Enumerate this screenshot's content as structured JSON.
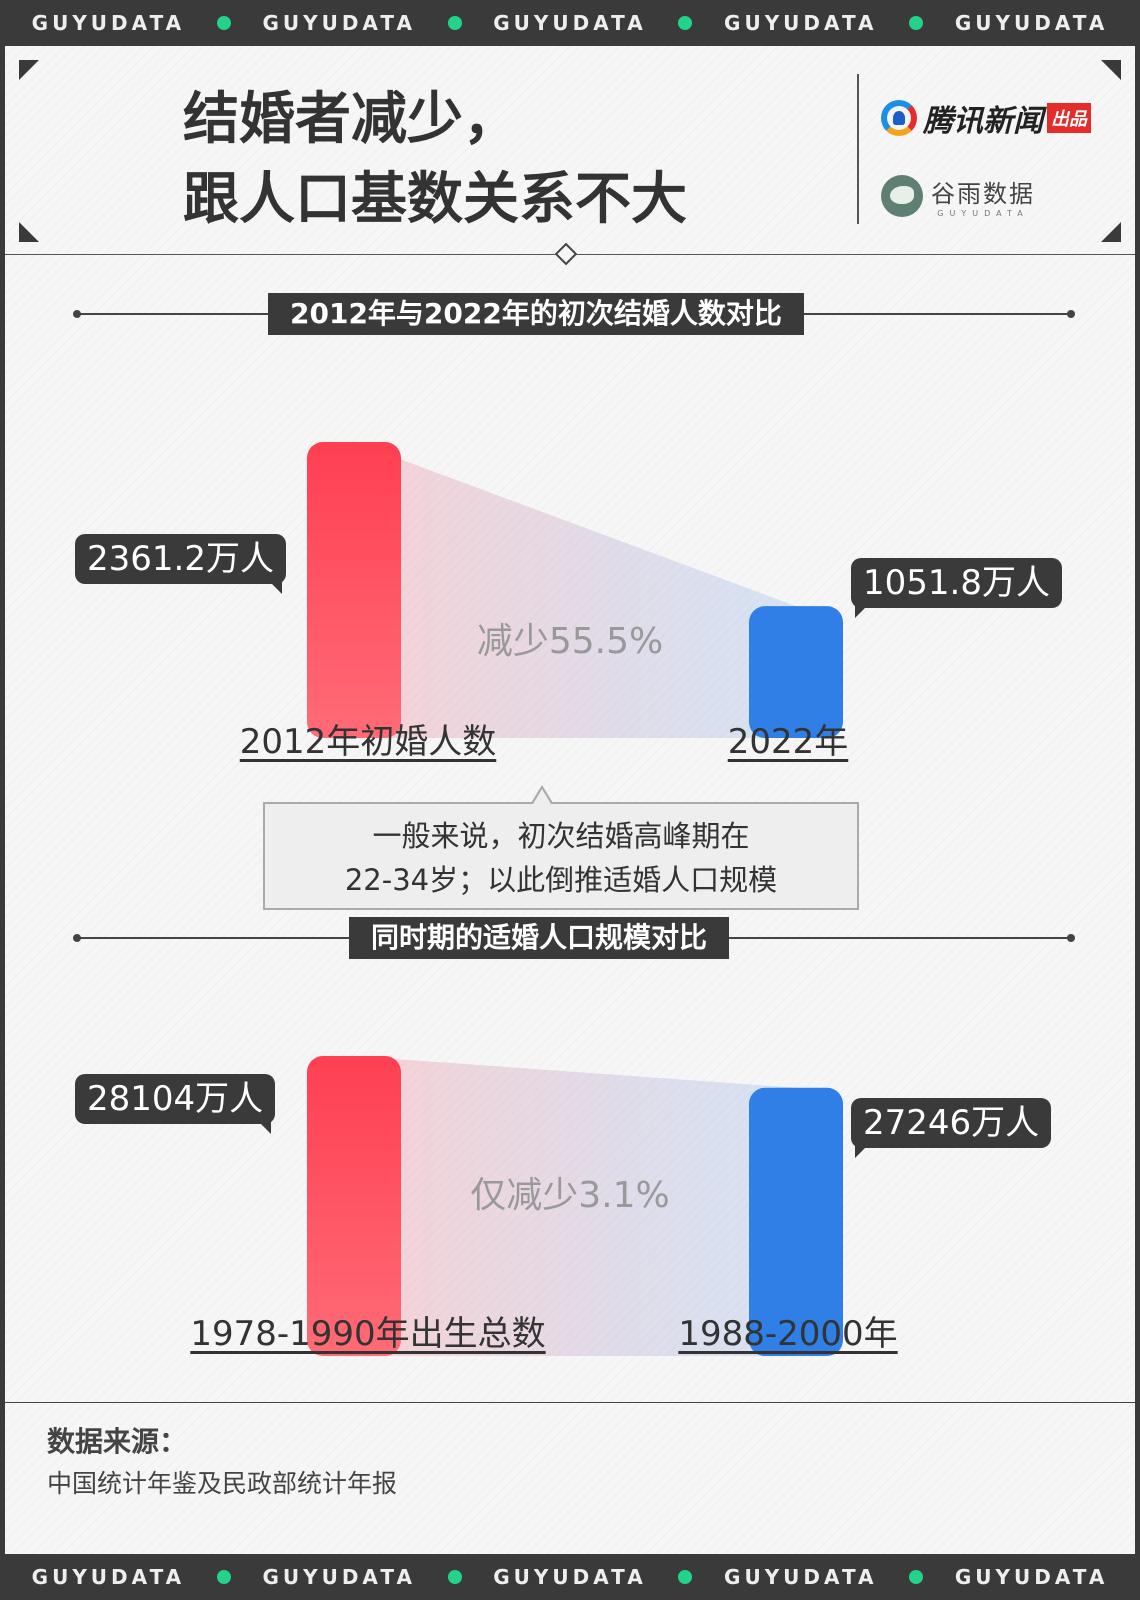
{
  "band": {
    "items": [
      "GUYUDATA",
      "GUYUDATA",
      "GUYUDATA",
      "GUYUDATA",
      "GUYUDATA"
    ],
    "dot_color": "#22d48a"
  },
  "header": {
    "title_line1": "结婚者减少，",
    "title_line2": "跟人口基数关系不大",
    "brand1_name": "腾讯新闻",
    "brand1_tag": "出品",
    "brand2_name": "谷雨数据",
    "brand2_sub": "GUYUDATA"
  },
  "colors": {
    "red": "#ff4d5e",
    "blue": "#2f7fe6",
    "dark": "#3a3a3a"
  },
  "chart_data": [
    {
      "type": "bar",
      "title": "2012年与2022年的初次结婚人数对比",
      "categories": [
        "2012年初婚人数",
        "2022年"
      ],
      "values": [
        2361.2,
        1051.8
      ],
      "value_labels": [
        "2361.2万人",
        "1051.8万人"
      ],
      "unit": "万人",
      "change_label": "减少55.5%",
      "xlabel": "",
      "ylabel": ""
    },
    {
      "type": "bar",
      "title": "同时期的适婚人口规模对比",
      "categories": [
        "1978-1990年出生总数",
        "1988-2000年"
      ],
      "values": [
        28104,
        27246
      ],
      "value_labels": [
        "28104万人",
        "27246万人"
      ],
      "unit": "万人",
      "change_label": "仅减少3.1%",
      "xlabel": "",
      "ylabel": ""
    }
  ],
  "note": {
    "line1": "一般来说，初次结婚高峰期在",
    "line2": "22-34岁；以此倒推适婚人口规模"
  },
  "source": {
    "label": "数据来源：",
    "text": "中国统计年鉴及民政部统计年报"
  }
}
